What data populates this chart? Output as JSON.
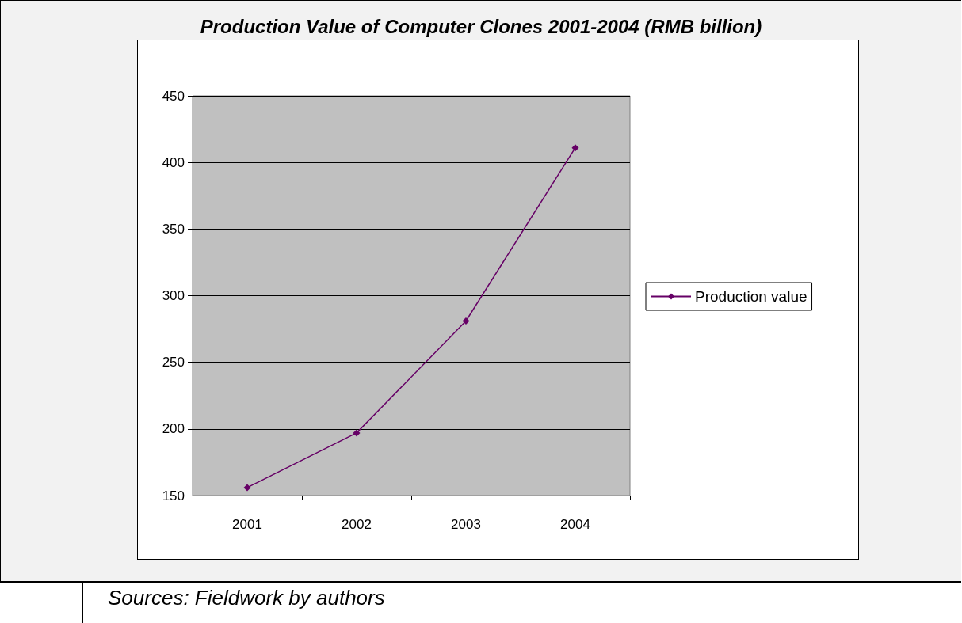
{
  "chart_data": {
    "type": "line",
    "title": "Production Value of Computer Clones 2001-2004 (RMB billion)",
    "categories": [
      "2001",
      "2002",
      "2003",
      "2004"
    ],
    "series": [
      {
        "name": "Production value",
        "color": "#660066",
        "values": [
          156,
          197,
          281,
          411
        ]
      }
    ],
    "ylim": [
      150,
      450
    ],
    "yticks": [
      150,
      200,
      250,
      300,
      350,
      400,
      450
    ],
    "grid": "y",
    "legend": "right",
    "marker": "diamond",
    "line_style": "solid",
    "annotations": [
      "Sources: Fieldwork by authors"
    ]
  }
}
